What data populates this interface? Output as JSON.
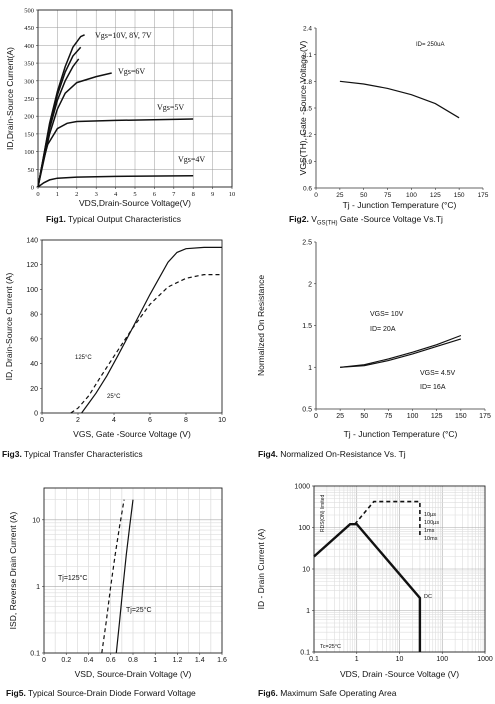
{
  "captions": [
    {
      "fig": "Fig1.",
      "text": " Typical Output Characteristics"
    },
    {
      "fig": "Fig2.",
      "text": " V",
      "sub": "GS(TH)",
      "text2": " Gate -Source Voltage Vs.Tj"
    },
    {
      "fig": "Fig3.",
      "text": " Typical Transfer Characteristics"
    },
    {
      "fig": "Fig4.",
      "text": " Normalized On-Resistance Vs. Tj"
    },
    {
      "fig": "Fig5.",
      "text": " Typical Source-Drain Diode Forward Voltage"
    },
    {
      "fig": "Fig6.",
      "text": " Maximum Safe Operating Area"
    }
  ],
  "chart_data": [
    {
      "type": "line",
      "title": "",
      "xlabel": "VDS,Drain-Source Voltage(V)",
      "ylabel": "ID,Drain-Source Current(A)",
      "xlim": [
        0,
        10
      ],
      "ylim": [
        0,
        500
      ],
      "xticks": [
        0,
        1,
        2,
        3,
        4,
        5,
        6,
        7,
        8,
        9,
        10
      ],
      "yticks": [
        0,
        50,
        100,
        150,
        200,
        250,
        300,
        350,
        400,
        450,
        500
      ],
      "grid": true,
      "series": [
        {
          "label": "Vgs=10V, 8V, 7V",
          "x": [
            0,
            0.3,
            0.6,
            1,
            1.4,
            1.8,
            2.2,
            2.4
          ],
          "y": [
            0,
            90,
            180,
            270,
            340,
            395,
            425,
            430
          ]
        },
        {
          "x": [
            0,
            0.3,
            0.6,
            1,
            1.4,
            1.8,
            2.2
          ],
          "y": [
            0,
            88,
            175,
            260,
            325,
            370,
            395
          ]
        },
        {
          "x": [
            0,
            0.3,
            0.6,
            1,
            1.4,
            1.8,
            2.1
          ],
          "y": [
            0,
            85,
            165,
            245,
            300,
            340,
            362
          ]
        },
        {
          "label": "Vgs=6V",
          "x": [
            0,
            0.3,
            0.6,
            1,
            1.4,
            2,
            3,
            3.8
          ],
          "y": [
            0,
            75,
            150,
            220,
            265,
            295,
            312,
            322
          ]
        },
        {
          "label": "Vgs=5V",
          "x": [
            0,
            0.2,
            0.5,
            1,
            1.5,
            2,
            4,
            8
          ],
          "y": [
            0,
            60,
            120,
            165,
            180,
            185,
            188,
            192
          ]
        },
        {
          "label": "Vgs=4V",
          "x": [
            0,
            0.3,
            0.6,
            1,
            2,
            4,
            8
          ],
          "y": [
            0,
            12,
            20,
            25,
            28,
            30,
            32
          ]
        }
      ]
    },
    {
      "type": "line",
      "title": "",
      "xlabel": "Tj - Junction Temperature (°C)",
      "ylabel": "VGS(TH), Gate -Source Voltage (V)",
      "xlim": [
        0,
        175
      ],
      "ylim": [
        0.6,
        2.4
      ],
      "xticks": [
        0,
        25,
        50,
        75,
        100,
        125,
        150,
        175
      ],
      "yticks": [
        0.6,
        0.9,
        1.2,
        1.5,
        1.8,
        2.1,
        2.4
      ],
      "annotation": "ID= 250uA",
      "series": [
        {
          "x": [
            25,
            50,
            75,
            100,
            125,
            150
          ],
          "y": [
            1.8,
            1.77,
            1.72,
            1.65,
            1.55,
            1.39
          ]
        }
      ]
    },
    {
      "type": "line",
      "title": "",
      "xlabel": "VGS, Gate -Source Voltage (V)",
      "ylabel": "ID, Drain-Source Current (A)",
      "xlim": [
        0,
        10
      ],
      "ylim": [
        0,
        140
      ],
      "xticks": [
        0,
        2,
        4,
        6,
        8,
        10
      ],
      "yticks": [
        0,
        20,
        40,
        60,
        80,
        100,
        120,
        140
      ],
      "grid": false,
      "series": [
        {
          "label": "25°C",
          "style": "solid",
          "x": [
            2.2,
            2.6,
            3.0,
            3.6,
            4.2,
            5,
            6,
            7,
            7.5,
            8,
            9,
            10
          ],
          "y": [
            0,
            8,
            16,
            30,
            46,
            68,
            96,
            122,
            130,
            133,
            134,
            134
          ]
        },
        {
          "label": "125°C",
          "style": "dashed",
          "x": [
            1.6,
            2.0,
            2.6,
            3.2,
            4,
            5,
            6,
            7,
            8,
            9,
            10
          ],
          "y": [
            0,
            4,
            14,
            28,
            46,
            68,
            88,
            102,
            109,
            112,
            112
          ]
        }
      ]
    },
    {
      "type": "line",
      "title": "",
      "xlabel": "Tj - Junction Temperature (°C)",
      "ylabel": "Normalized On Resistance",
      "xlim": [
        0,
        175
      ],
      "ylim": [
        0.5,
        2.5
      ],
      "xticks": [
        0,
        25,
        50,
        75,
        100,
        125,
        150,
        175
      ],
      "yticks": [
        0.5,
        1.0,
        1.5,
        2.0,
        2.5
      ],
      "series": [
        {
          "label": "VGS= 10V\nID= 20A",
          "x": [
            25,
            50,
            75,
            100,
            125,
            150
          ],
          "y": [
            1.0,
            1.03,
            1.1,
            1.18,
            1.27,
            1.38
          ]
        },
        {
          "label": "VGS= 4.5V\nID= 16A",
          "x": [
            25,
            50,
            75,
            100,
            125,
            150
          ],
          "y": [
            1.0,
            1.02,
            1.08,
            1.16,
            1.25,
            1.34
          ]
        }
      ]
    },
    {
      "type": "line",
      "title": "",
      "xlabel": "VSD, Source-Drain Voltage (V)",
      "ylabel": "ISD, Reverse Drain Current (A)",
      "xlim": [
        0,
        1.6
      ],
      "ylim": [
        0.1,
        30
      ],
      "yscale": "log",
      "xticks": [
        0,
        0.2,
        0.4,
        0.6,
        0.8,
        1,
        1.2,
        1.4,
        1.6
      ],
      "yticks": [
        0.1,
        1,
        10
      ],
      "grid": true,
      "series": [
        {
          "label": "Tj=125°C",
          "style": "dashed",
          "x": [
            0.52,
            0.56,
            0.6,
            0.64,
            0.68,
            0.72
          ],
          "y": [
            0.1,
            0.3,
            1,
            3,
            8,
            20
          ]
        },
        {
          "label": "Tj=25°C",
          "style": "solid",
          "x": [
            0.65,
            0.68,
            0.71,
            0.74,
            0.77,
            0.8
          ],
          "y": [
            0.1,
            0.3,
            1,
            3,
            8,
            20
          ]
        }
      ]
    },
    {
      "type": "line",
      "title": "",
      "xlabel": "VDS, Drain -Source Voltage (V)",
      "ylabel": "ID - Drain Current (A)",
      "xlim": [
        0.1,
        1000
      ],
      "ylim": [
        0.1,
        1000
      ],
      "xscale": "log",
      "yscale": "log",
      "xticks": [
        0.1,
        1,
        10,
        100,
        1000
      ],
      "yticks": [
        0.1,
        1,
        10,
        100,
        1000
      ],
      "grid": true,
      "annotations": [
        "R",
        "DS(ON)",
        "limited",
        "10µs",
        "100µs",
        "1ms",
        "10ms",
        "DC",
        "T",
        "c",
        "=25°C"
      ],
      "series": [
        {
          "label": "DC",
          "style": "solid",
          "x": [
            0.1,
            0.7,
            1.0,
            30,
            30
          ],
          "y": [
            20,
            120,
            120,
            2,
            0.1
          ]
        },
        {
          "label": "10µs",
          "style": "dashed",
          "x": [
            0.9,
            2.5,
            30,
            30
          ],
          "y": [
            120,
            420,
            420,
            60
          ]
        }
      ]
    }
  ]
}
